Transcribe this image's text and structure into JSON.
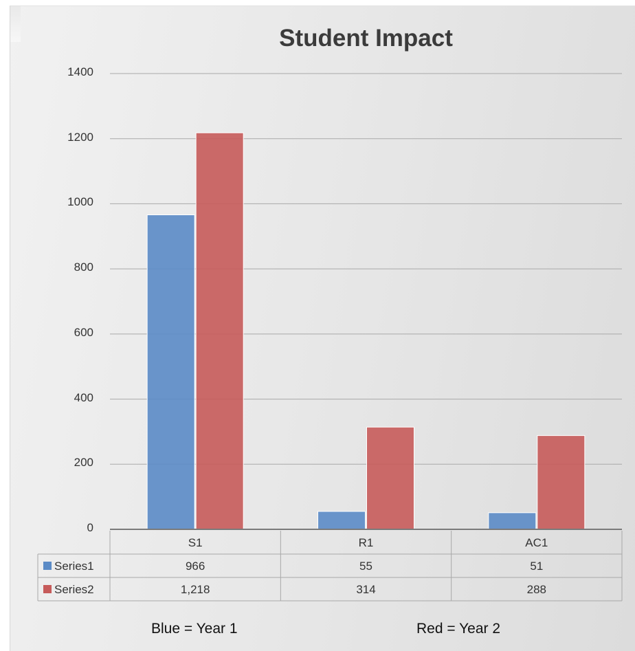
{
  "chart_data": {
    "type": "bar",
    "title": "Student Impact",
    "categories": [
      "S1",
      "R1",
      "AC1"
    ],
    "series": [
      {
        "name": "Series1",
        "values": [
          966,
          55,
          51
        ],
        "display": [
          "966",
          "55",
          "51"
        ],
        "color": "#5b8bc6"
      },
      {
        "name": "Series2",
        "values": [
          1218,
          314,
          288
        ],
        "display": [
          "1,218",
          "314",
          "288"
        ],
        "color": "#c65b5a"
      }
    ],
    "ylim": [
      0,
      1400
    ],
    "yticks": [
      0,
      200,
      400,
      600,
      800,
      1000,
      1200,
      1400
    ],
    "xlabel": "",
    "ylabel": "",
    "grid": true,
    "legend": "data-table"
  },
  "notes": {
    "blue": "Blue = Year 1",
    "red": "Red = Year 2"
  }
}
